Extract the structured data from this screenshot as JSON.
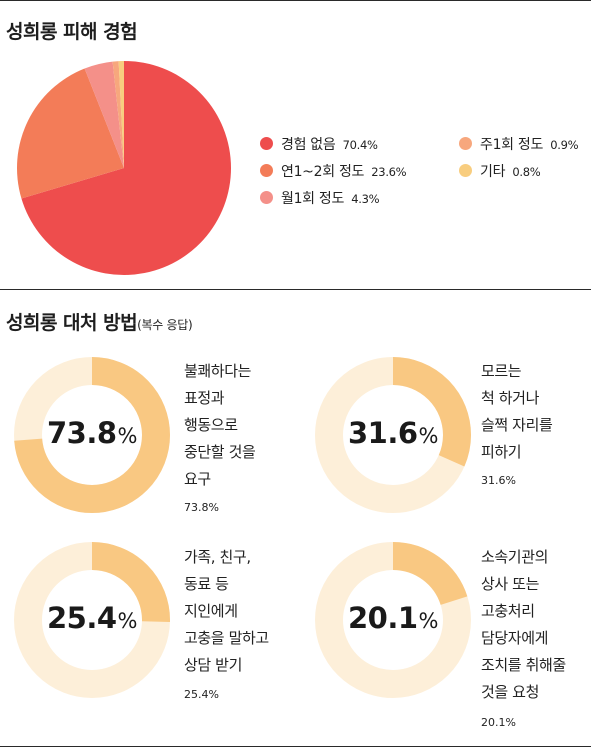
{
  "section1": {
    "title": "성희롱 피해 경험"
  },
  "section2": {
    "title": "성희롱 대처 방법",
    "note": "(복수 응답)"
  },
  "chart_data": [
    {
      "type": "pie",
      "title": "성희롱 피해 경험",
      "slices": [
        {
          "label": "경험 없음",
          "value": 70.4,
          "value_text": "70.4%",
          "color": "#ee4d4d"
        },
        {
          "label": "연1~2회 정도",
          "value": 23.6,
          "value_text": "23.6%",
          "color": "#f37c58"
        },
        {
          "label": "월1회 정도",
          "value": 4.3,
          "value_text": "4.3%",
          "color": "#f49089"
        },
        {
          "label": "주1회 정도",
          "value": 0.9,
          "value_text": "0.9%",
          "color": "#f7a77d"
        },
        {
          "label": "기타",
          "value": 0.8,
          "value_text": "0.8%",
          "color": "#f8cd7f"
        }
      ],
      "legend_order": [
        0,
        3,
        1,
        4,
        2
      ]
    },
    {
      "type": "donut",
      "title": "성희롱 대처 방법",
      "colors": {
        "filled": "#f9c882",
        "remainder": "#fdefd9"
      },
      "items": [
        {
          "label_lines": [
            "불쾌하다는",
            "표정과",
            "행동으로",
            "중단할 것을",
            "요구"
          ],
          "value": 73.8,
          "value_num": "73.8",
          "unit": "%",
          "value_text": "73.8%"
        },
        {
          "label_lines": [
            "모르는",
            "척 하거나",
            "슬쩍 자리를",
            "피하기"
          ],
          "value": 31.6,
          "value_num": "31.6",
          "unit": "%",
          "value_text": "31.6%"
        },
        {
          "label_lines": [
            "가족, 친구,",
            "동료 등",
            "지인에게",
            "고충을 말하고",
            "상담 받기"
          ],
          "value": 25.4,
          "value_num": "25.4",
          "unit": "%",
          "value_text": "25.4%"
        },
        {
          "label_lines": [
            "소속기관의",
            "상사 또는",
            "고충처리",
            "담당자에게",
            "조치를 취해줄",
            "것을 요청"
          ],
          "value": 20.1,
          "value_num": "20.1",
          "unit": "%",
          "value_text": "20.1%"
        }
      ]
    }
  ]
}
